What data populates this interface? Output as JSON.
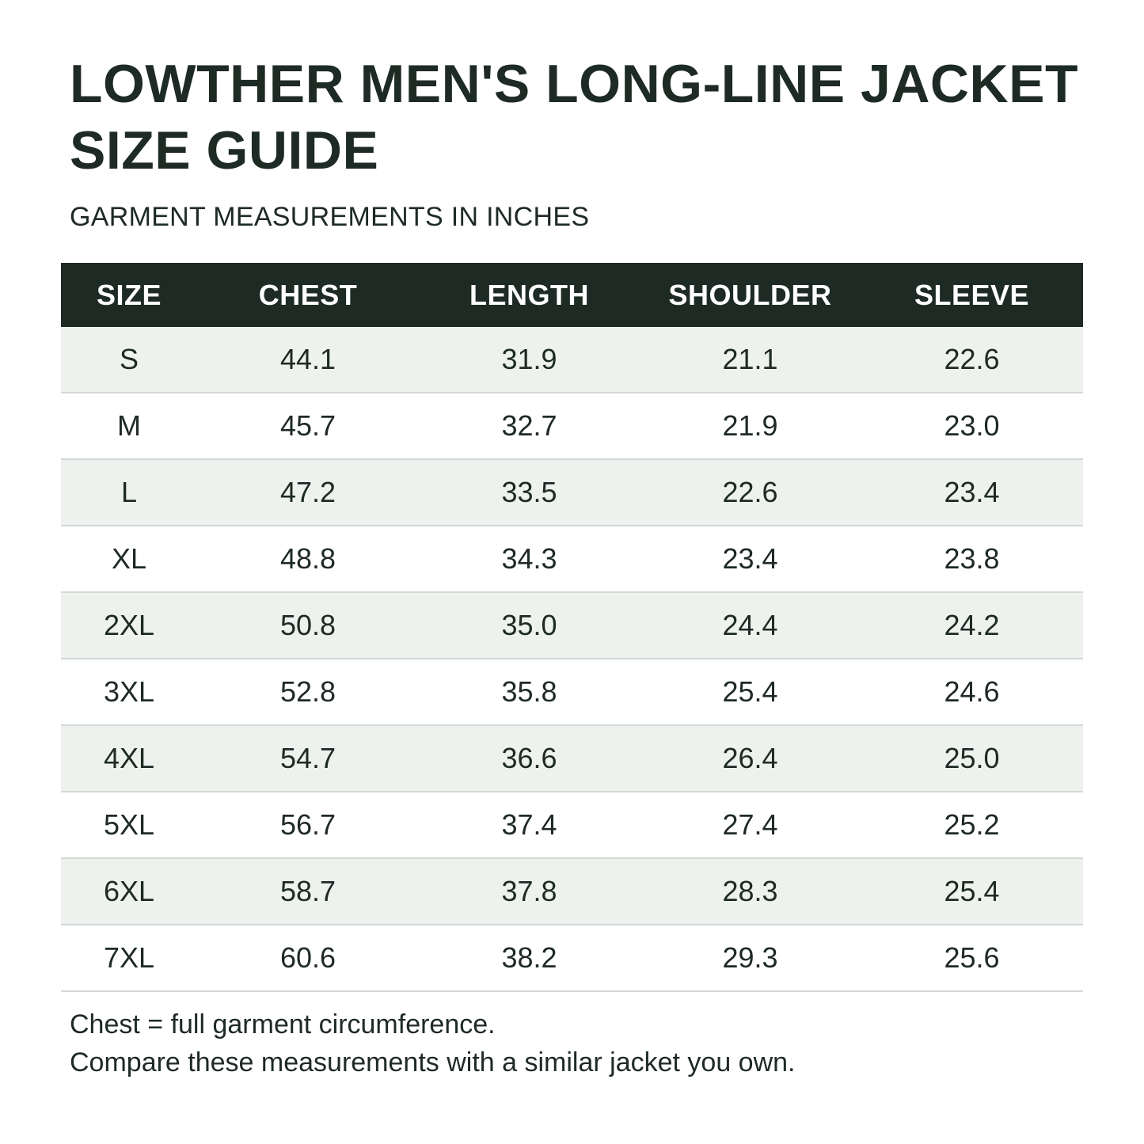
{
  "header": {
    "title": "LOWTHER MEN'S LONG-LINE JACKET SIZE GUIDE",
    "subtitle": "GARMENT MEASUREMENTS IN INCHES"
  },
  "table": {
    "columns": [
      "SIZE",
      "CHEST",
      "LENGTH",
      "SHOULDER",
      "SLEEVE"
    ],
    "rows": [
      [
        "S",
        "44.1",
        "31.9",
        "21.1",
        "22.6"
      ],
      [
        "M",
        "45.7",
        "32.7",
        "21.9",
        "23.0"
      ],
      [
        "L",
        "47.2",
        "33.5",
        "22.6",
        "23.4"
      ],
      [
        "XL",
        "48.8",
        "34.3",
        "23.4",
        "23.8"
      ],
      [
        "2XL",
        "50.8",
        "35.0",
        "24.4",
        "24.2"
      ],
      [
        "3XL",
        "52.8",
        "35.8",
        "25.4",
        "24.6"
      ],
      [
        "4XL",
        "54.7",
        "36.6",
        "26.4",
        "25.0"
      ],
      [
        "5XL",
        "56.7",
        "37.4",
        "27.4",
        "25.2"
      ],
      [
        "6XL",
        "58.7",
        "37.8",
        "28.3",
        "25.4"
      ],
      [
        "7XL",
        "60.6",
        "38.2",
        "29.3",
        "25.6"
      ]
    ]
  },
  "notes": {
    "line1": "Chest = full garment circumference.",
    "line2": "Compare these measurements with a similar jacket you own."
  },
  "colors": {
    "header_bg": "#1e2a24",
    "text": "#1e2a24",
    "stripe": "#eef2ef",
    "divider": "#d5d9d6"
  }
}
